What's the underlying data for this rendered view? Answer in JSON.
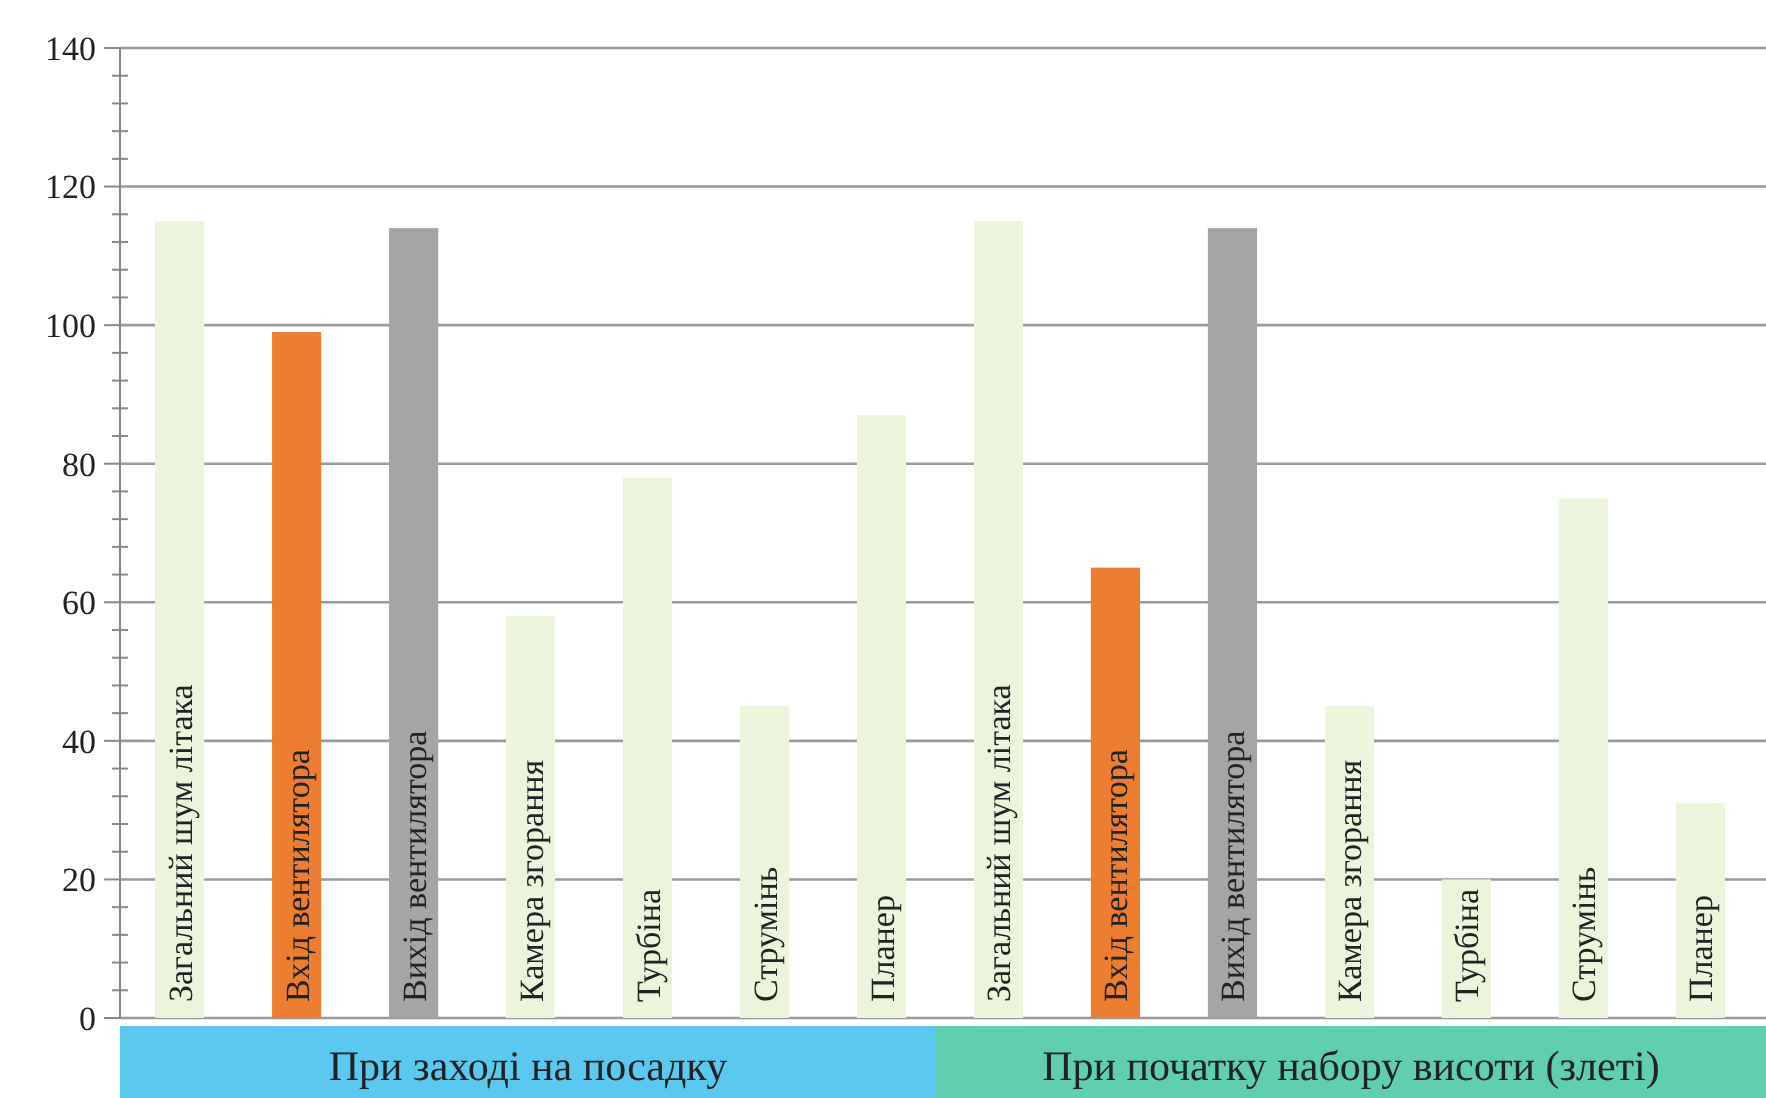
{
  "chart_data": {
    "type": "bar",
    "categories": [
      "Загальний шум літака",
      "Вхід вентилятора",
      "Вихід вентилятора",
      "Камера згорання",
      "Турбіна",
      "Струмінь",
      "Планер",
      "Загальний шум літака",
      "Вхід вентилятора",
      "Вихід вентилятора",
      "Камера згорання",
      "Турбіна",
      "Струмінь",
      "Планер"
    ],
    "values": [
      115,
      99,
      114,
      58,
      78,
      45,
      87,
      115,
      65,
      114,
      45,
      20,
      75,
      31
    ],
    "colors": [
      "#ebf5dc",
      "#ed7d31",
      "#a5a5a5",
      "#ebf5dc",
      "#ebf5dc",
      "#ebf5dc",
      "#ebf5dc",
      "#ebf5dc",
      "#ed7d31",
      "#a5a5a5",
      "#ebf5dc",
      "#ebf5dc",
      "#ebf5dc",
      "#ebf5dc"
    ],
    "ylim": [
      0,
      140
    ],
    "yticks": [
      0,
      20,
      40,
      60,
      80,
      100,
      120,
      140
    ],
    "grid": "y",
    "annotations": [
      "При заході на посадку",
      "При початку набору висоти (злеті)"
    ]
  }
}
